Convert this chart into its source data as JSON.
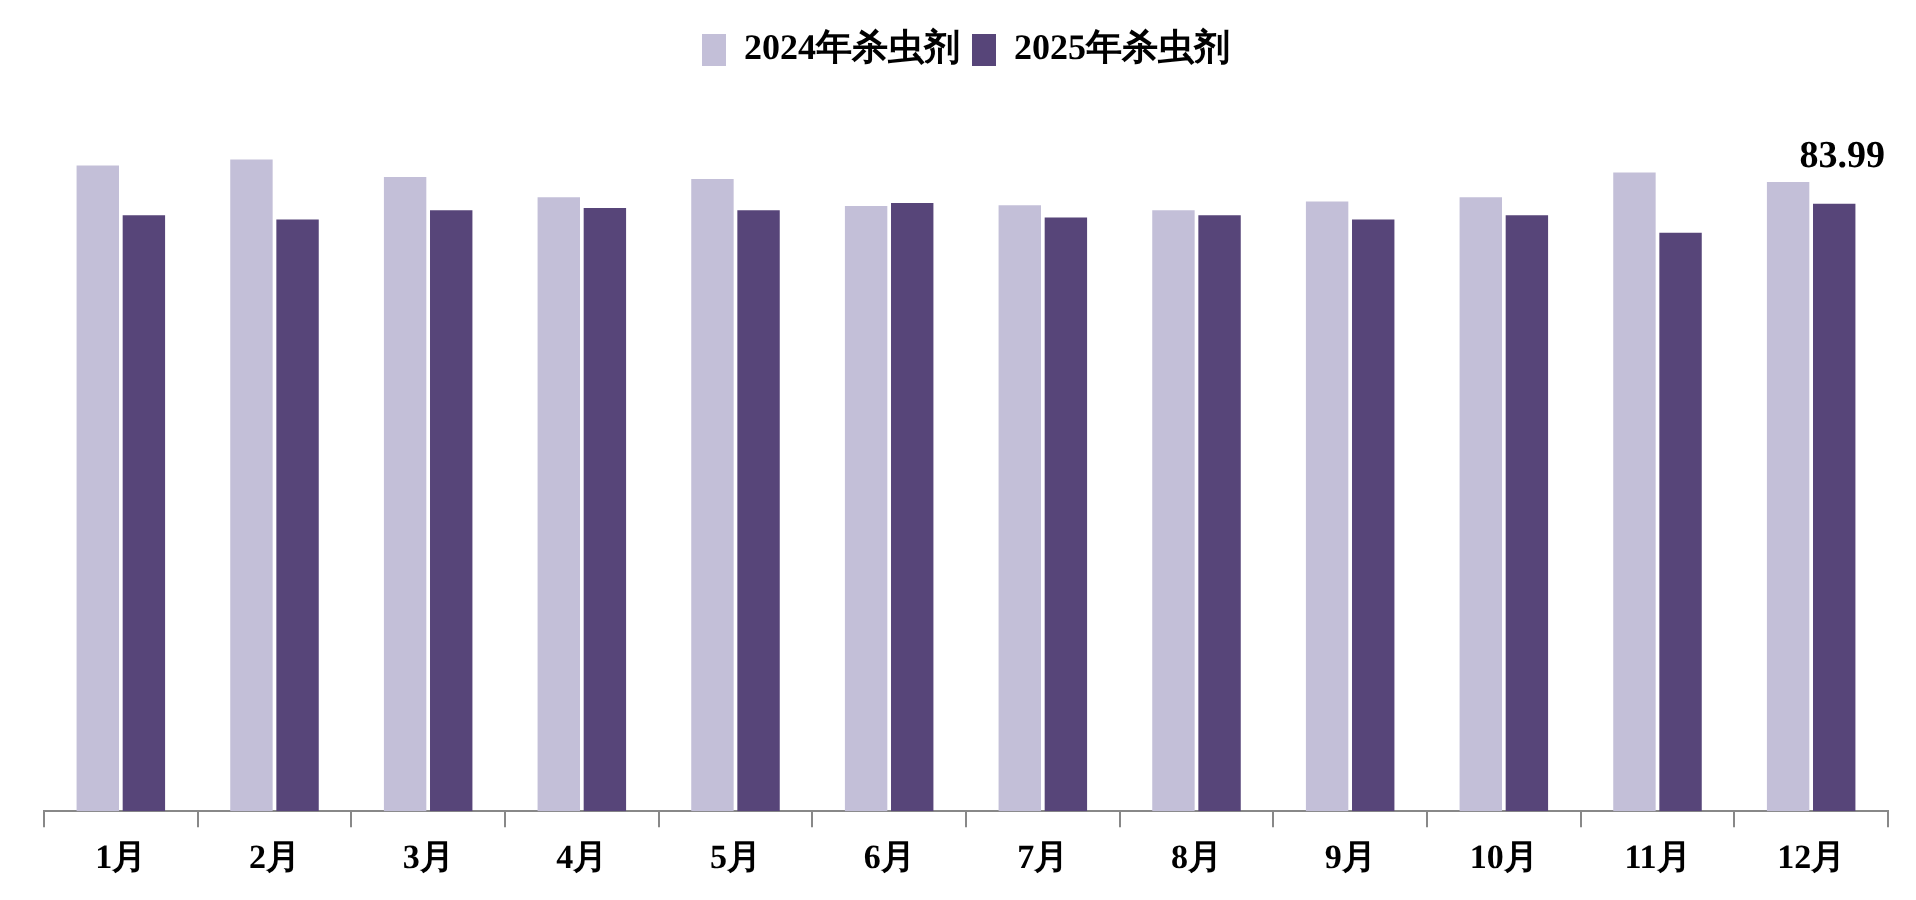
{
  "chart_data": {
    "type": "bar",
    "categories": [
      "1月",
      "2月",
      "3月",
      "4月",
      "5月",
      "6月",
      "7月",
      "8月",
      "9月",
      "10月",
      "11月",
      "12月"
    ],
    "series": [
      {
        "name": "2024年杀虫剂",
        "color": "#c3bfd8",
        "values": [
          89.3,
          90.1,
          87.7,
          84.9,
          87.4,
          83.7,
          83.8,
          83.1,
          84.3,
          84.9,
          88.3,
          87.0
        ]
      },
      {
        "name": "2025年杀虫剂",
        "color": "#574579",
        "values": [
          82.4,
          81.8,
          83.1,
          83.4,
          83.1,
          84.1,
          82.1,
          82.4,
          81.8,
          82.4,
          80.0,
          83.99
        ],
        "value_labels": [
          null,
          null,
          null,
          null,
          null,
          null,
          null,
          null,
          null,
          null,
          null,
          "83.99"
        ]
      }
    ],
    "tick_labels": "x",
    "grid": false,
    "legend": "top"
  }
}
